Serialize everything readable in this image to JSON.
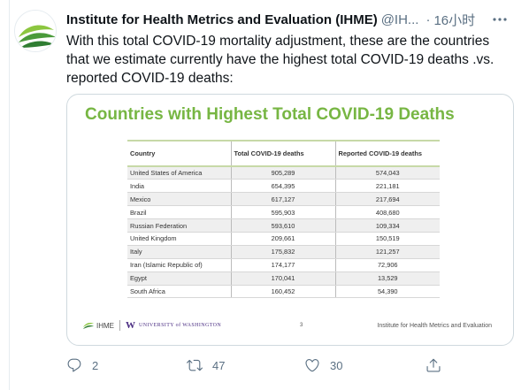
{
  "tweet": {
    "author_name": "Institute for Health Metrics and Evaluation (IHME)",
    "author_handle": "@IH...",
    "separator": "·",
    "timestamp": "16小时",
    "text": "With this total COVID-19 mortality adjustment, these are the countries that we estimate currently have the highest total COVID-19 deaths .vs. reported COVID-19 deaths:"
  },
  "slide": {
    "title": "Countries with Highest Total COVID-19 Deaths",
    "columns": [
      "Country",
      "Total COVID-19 deaths",
      "Reported COVID-19 deaths"
    ],
    "rows": [
      [
        "United States of America",
        "905,289",
        "574,043"
      ],
      [
        "India",
        "654,395",
        "221,181"
      ],
      [
        "Mexico",
        "617,127",
        "217,694"
      ],
      [
        "Brazil",
        "595,903",
        "408,680"
      ],
      [
        "Russian Federation",
        "593,610",
        "109,334"
      ],
      [
        "United Kingdom",
        "209,661",
        "150,519"
      ],
      [
        "Italy",
        "175,832",
        "121,257"
      ],
      [
        "Iran (Islamic Republic of)",
        "174,177",
        "72,906"
      ],
      [
        "Egypt",
        "170,041",
        "13,529"
      ],
      [
        "South Africa",
        "160,452",
        "54,390"
      ]
    ],
    "footer": {
      "ihme_logo_text": "IHME",
      "uw_w": "W",
      "uw_text": "UNIVERSITY of WASHINGTON",
      "page_number": "3",
      "org_name": "Institute for Health Metrics and Evaluation"
    }
  },
  "actions": {
    "reply_count": "2",
    "retweet_count": "47",
    "like_count": "30"
  },
  "colors": {
    "title_green": "#77b643",
    "muted": "#5b7083",
    "uw_purple": "#4b2e83"
  },
  "icons": [
    "avatar-logo",
    "more-icon",
    "ihme-leaf-icon",
    "reply-icon",
    "retweet-icon",
    "like-icon",
    "share-icon"
  ]
}
